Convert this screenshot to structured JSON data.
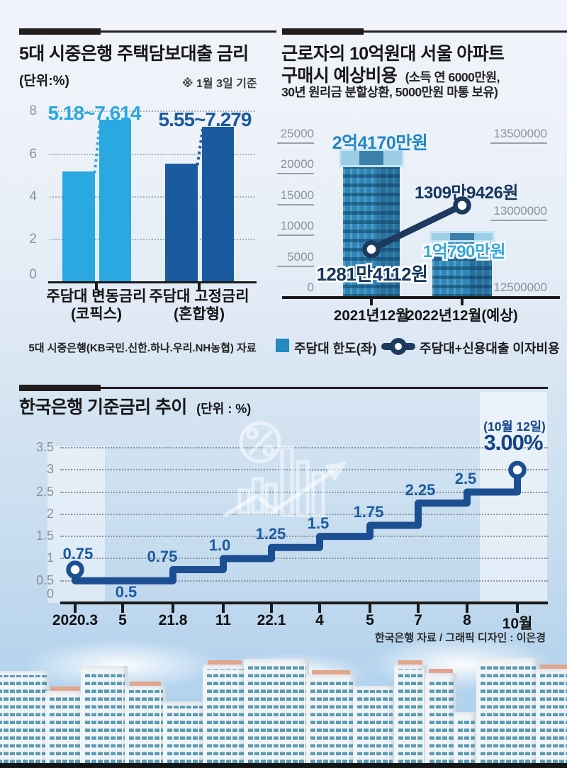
{
  "chart_data": [
    {
      "id": "five-bank-mortgage-rates",
      "type": "bar",
      "title": "5대 시중은행 주택담보대출 금리",
      "unit_label": "(단위:%)",
      "note": "※ 1월 3일 기준",
      "source": "5대 시중은행(KB국민.신한.하나.우리.NH농협) 자료",
      "ylim": [
        0,
        8
      ],
      "y_ticks": [
        8,
        6,
        4,
        2,
        0
      ],
      "grid": "dotted",
      "groups": [
        {
          "category": "주담대 변동금리",
          "category_sub": "(코픽스)",
          "range_label": "5.18~7.614",
          "low": 5.18,
          "high": 7.614,
          "color": "#29a8e2"
        },
        {
          "category": "주담대 고정금리",
          "category_sub": "(혼합형)",
          "range_label": "5.55~7.279",
          "low": 5.55,
          "high": 7.279,
          "color": "#1b5a9e"
        }
      ]
    },
    {
      "id": "seoul-apartment-purchase-cost",
      "type": "bar+line",
      "title_line1": "근로자의 10억원대 서울 아파트",
      "title_line2_bold": "구매시 예상비용",
      "title_paren1": "(소득 연 6000만원,",
      "title_paren2": "30년 원리금 분할상환, 5000만원 마통 보유)",
      "left_axis_ticks": [
        25000,
        20000,
        15000,
        10000,
        5000,
        0
      ],
      "left_axis_range": [
        0,
        25000
      ],
      "right_axis_ticks": [
        13500000,
        13000000,
        12500000
      ],
      "right_axis_range": [
        12500000,
        13500000
      ],
      "categories": [
        "2021년12월",
        "2022년12월(예상)"
      ],
      "bar_series": {
        "name": "주담대 한도(좌)",
        "values": [
          24170,
          10790
        ],
        "value_labels": [
          "2억4170만원",
          "1억790만원"
        ],
        "color": "#2e86b8"
      },
      "line_series": {
        "name": "주담대+신용대출 이자비용",
        "values": [
          12814112,
          13099426
        ],
        "value_labels": [
          "1281만4112원",
          "1309만9426원"
        ],
        "color": "#1d3a5e"
      },
      "legend": [
        {
          "label": "주담대 한도(좌)",
          "swatch": "#2389be",
          "marker": "square"
        },
        {
          "label": "주담대+신용대출 이자비용",
          "swatch": "#1d3a5e",
          "marker": "line-circle"
        }
      ]
    },
    {
      "id": "bok-base-rate-trend",
      "type": "step-line",
      "title": "한국은행 기준금리 추이",
      "unit_label": "(단위 : %)",
      "credit": "한국은행 자료 / 그래픽 디자인 : 이은경",
      "ylim": [
        0,
        3.5
      ],
      "y_ticks": [
        3.5,
        3,
        2.5,
        2,
        1.5,
        1,
        0.5,
        0
      ],
      "x_ticks": [
        "2020.3",
        "5",
        "21.8",
        "11",
        "22.1",
        "4",
        "5",
        "7",
        "8",
        "10월"
      ],
      "steps": [
        {
          "x": "2020.3",
          "rate": 0.75,
          "label": "0.75",
          "marker": true
        },
        {
          "x": "2020.3",
          "rate": 0.5,
          "label": "0.5"
        },
        {
          "x": "21.8",
          "rate": 0.75,
          "label": "0.75"
        },
        {
          "x": "11",
          "rate": 1.0,
          "label": "1.0"
        },
        {
          "x": "22.1",
          "rate": 1.25,
          "label": "1.25"
        },
        {
          "x": "4",
          "rate": 1.5,
          "label": "1.5"
        },
        {
          "x": "5",
          "rate": 1.75,
          "label": "1.75"
        },
        {
          "x": "7",
          "rate": 2.25,
          "label": "2.25"
        },
        {
          "x": "8",
          "rate": 2.5,
          "label": "2.5"
        },
        {
          "x": "10월",
          "rate": 3.0,
          "label": "3.00%",
          "marker": true
        }
      ],
      "annotation": {
        "date": "(10월 12일)",
        "value": "3.00%"
      },
      "line_color": "#1c4e92",
      "label_color": "#1b5b9e"
    }
  ]
}
